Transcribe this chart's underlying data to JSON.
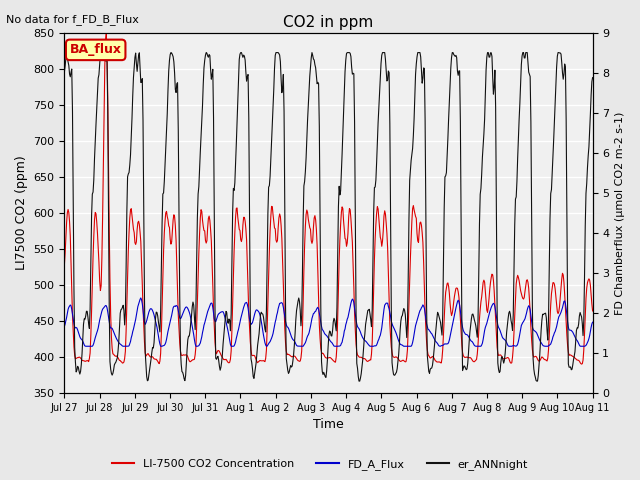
{
  "title": "CO2 in ppm",
  "top_left_text": "No data for f_FD_B_Flux",
  "annotation_text": "BA_flux",
  "annotation_bg": "#ffffaa",
  "annotation_border": "#cc0000",
  "annotation_text_color": "#cc0000",
  "ylabel_left": "LI7500 CO2 (ppm)",
  "ylabel_right": "FD Chamberflux (μmol CO2 m-2 s-1)",
  "xlabel": "Time",
  "ylim_left": [
    350,
    850
  ],
  "ylim_right": [
    0.0,
    9.0
  ],
  "yticks_left": [
    350,
    400,
    450,
    500,
    550,
    600,
    650,
    700,
    750,
    800,
    850
  ],
  "yticks_right": [
    0.0,
    1.0,
    2.0,
    3.0,
    4.0,
    5.0,
    6.0,
    7.0,
    8.0,
    9.0
  ],
  "xtick_labels": [
    "Jul 27",
    "Jul 28",
    "Jul 29",
    "Jul 30",
    "Jul 31",
    "Aug 1",
    "Aug 2",
    "Aug 3",
    "Aug 4",
    "Aug 5",
    "Aug 6",
    "Aug 7",
    "Aug 8",
    "Aug 9",
    "Aug 10",
    "Aug 11"
  ],
  "color_red": "#dd0000",
  "color_blue": "#0000cc",
  "color_black": "#111111",
  "legend_labels": [
    "LI-7500 CO2 Concentration",
    "FD_A_Flux",
    "er_ANNnight"
  ],
  "bg_color": "#e8e8e8",
  "plot_bg": "#f0f0f0",
  "grid_color": "#ffffff",
  "n_days": 15,
  "pts_per_day": 48
}
